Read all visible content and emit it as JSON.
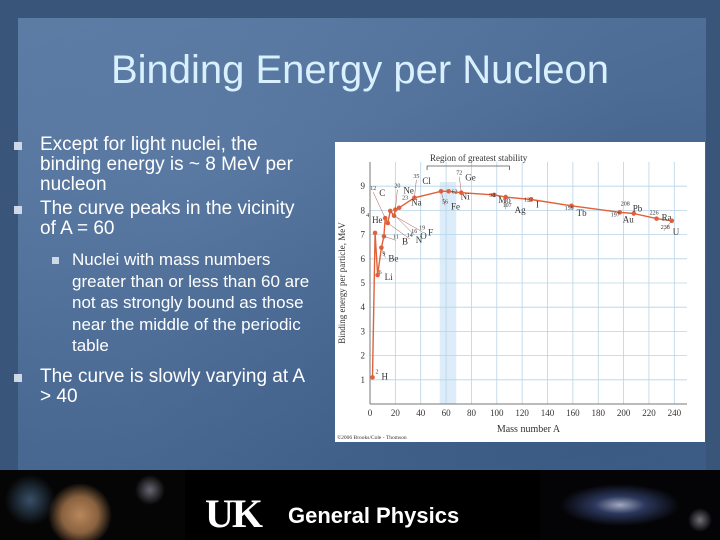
{
  "slide": {
    "title": "Binding Energy per Nucleon",
    "bullets": [
      {
        "level": 1,
        "text": "Except for light nuclei, the binding energy is ~ 8 MeV per nucleon"
      },
      {
        "level": 1,
        "text": "The curve peaks in the vicinity of A = 60"
      },
      {
        "level": 2,
        "text": "Nuclei with mass numbers greater than or less than 60 are not as strongly bound as those near the middle of the periodic table"
      },
      {
        "level": 1,
        "text": "The curve is slowly varying at A > 40"
      }
    ],
    "bullet_marker_color": "#cfd8e6",
    "title_color": "#d9f0ff"
  },
  "footer": {
    "logo": "UK",
    "course": "General Physics"
  },
  "chart_data": {
    "type": "scatter",
    "xlabel": "Mass number A",
    "ylabel": "Binding energy per particle, MeV",
    "xlim": [
      0,
      250
    ],
    "ylim": [
      0,
      10
    ],
    "xticks": [
      0,
      20,
      40,
      60,
      80,
      100,
      120,
      140,
      160,
      180,
      200,
      220,
      240
    ],
    "yticks": [
      1,
      2,
      3,
      4,
      5,
      6,
      7,
      8,
      9
    ],
    "grid": true,
    "highlight_region": {
      "label": "Region of greatest stability",
      "x_range": [
        55,
        68
      ]
    },
    "credit": "©2006 Brooks/Cole - Thomson",
    "points": [
      {
        "A": 2,
        "y": 1.1,
        "mass": "2",
        "sym": "H"
      },
      {
        "A": 4,
        "y": 7.07,
        "mass": "4",
        "sym": "He"
      },
      {
        "A": 6,
        "y": 5.33,
        "mass": "6",
        "sym": "Li"
      },
      {
        "A": 9,
        "y": 6.46,
        "mass": "9",
        "sym": "Be"
      },
      {
        "A": 11,
        "y": 6.93,
        "mass": "11",
        "sym": "B"
      },
      {
        "A": 12,
        "y": 7.68,
        "mass": "12",
        "sym": "C"
      },
      {
        "A": 14,
        "y": 7.48,
        "mass": "14",
        "sym": "N"
      },
      {
        "A": 16,
        "y": 7.98,
        "mass": "16",
        "sym": "O"
      },
      {
        "A": 19,
        "y": 7.78,
        "mass": "19",
        "sym": "F"
      },
      {
        "A": 20,
        "y": 8.03,
        "mass": "20",
        "sym": "Ne"
      },
      {
        "A": 23,
        "y": 8.11,
        "mass": "23",
        "sym": "Na"
      },
      {
        "A": 35,
        "y": 8.52,
        "mass": "35",
        "sym": "Cl"
      },
      {
        "A": 56,
        "y": 8.79,
        "mass": "56",
        "sym": "Fe"
      },
      {
        "A": 62,
        "y": 8.79,
        "mass": "62",
        "sym": "Ni"
      },
      {
        "A": 72,
        "y": 8.73,
        "mass": "72",
        "sym": "Ge"
      },
      {
        "A": 98,
        "y": 8.64,
        "mass": "98",
        "sym": "Mo"
      },
      {
        "A": 107,
        "y": 8.55,
        "mass": "107",
        "sym": "Ag"
      },
      {
        "A": 127,
        "y": 8.45,
        "mass": "127",
        "sym": "I"
      },
      {
        "A": 159,
        "y": 8.19,
        "mass": "159",
        "sym": "Tb"
      },
      {
        "A": 197,
        "y": 7.92,
        "mass": "197",
        "sym": "Au"
      },
      {
        "A": 208,
        "y": 7.87,
        "mass": "208",
        "sym": "Pb"
      },
      {
        "A": 226,
        "y": 7.66,
        "mass": "226",
        "sym": "Ra"
      },
      {
        "A": 238,
        "y": 7.57,
        "mass": "238",
        "sym": "U"
      }
    ]
  }
}
